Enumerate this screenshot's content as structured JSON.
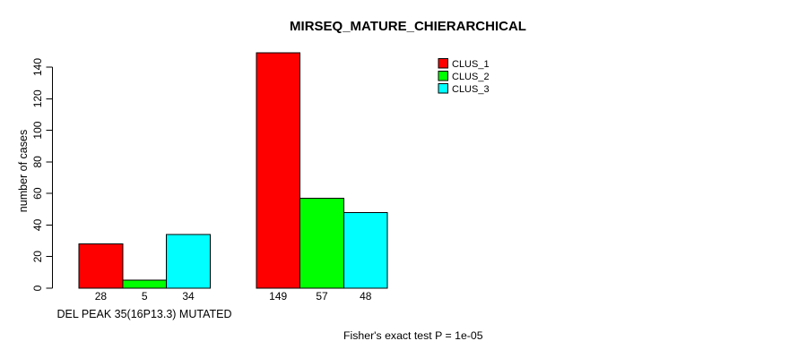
{
  "chart_data": {
    "type": "bar",
    "title": "MIRSEQ_MATURE_CHIERARCHICAL",
    "ylabel": "number of cases",
    "xlabel": "DEL PEAK 35(16P13.3) MUTATED",
    "note": "Fisher's exact test P = 1e-05",
    "ylim": [
      0,
      140
    ],
    "yticks": [
      0,
      20,
      40,
      60,
      80,
      100,
      120,
      140
    ],
    "grid": false,
    "legend_position": "top-right",
    "background_color": "#ffffff",
    "bar_border_color": "#000000",
    "groups": 2,
    "series": [
      {
        "name": "CLUS_1",
        "color": "#ff0000",
        "values": [
          28,
          149
        ]
      },
      {
        "name": "CLUS_2",
        "color": "#00ff00",
        "values": [
          5,
          57
        ]
      },
      {
        "name": "CLUS_3",
        "color": "#00ffff",
        "values": [
          34,
          48
        ]
      }
    ],
    "bar_value_labels": [
      [
        28,
        5,
        34
      ],
      [
        149,
        57,
        48
      ]
    ]
  }
}
